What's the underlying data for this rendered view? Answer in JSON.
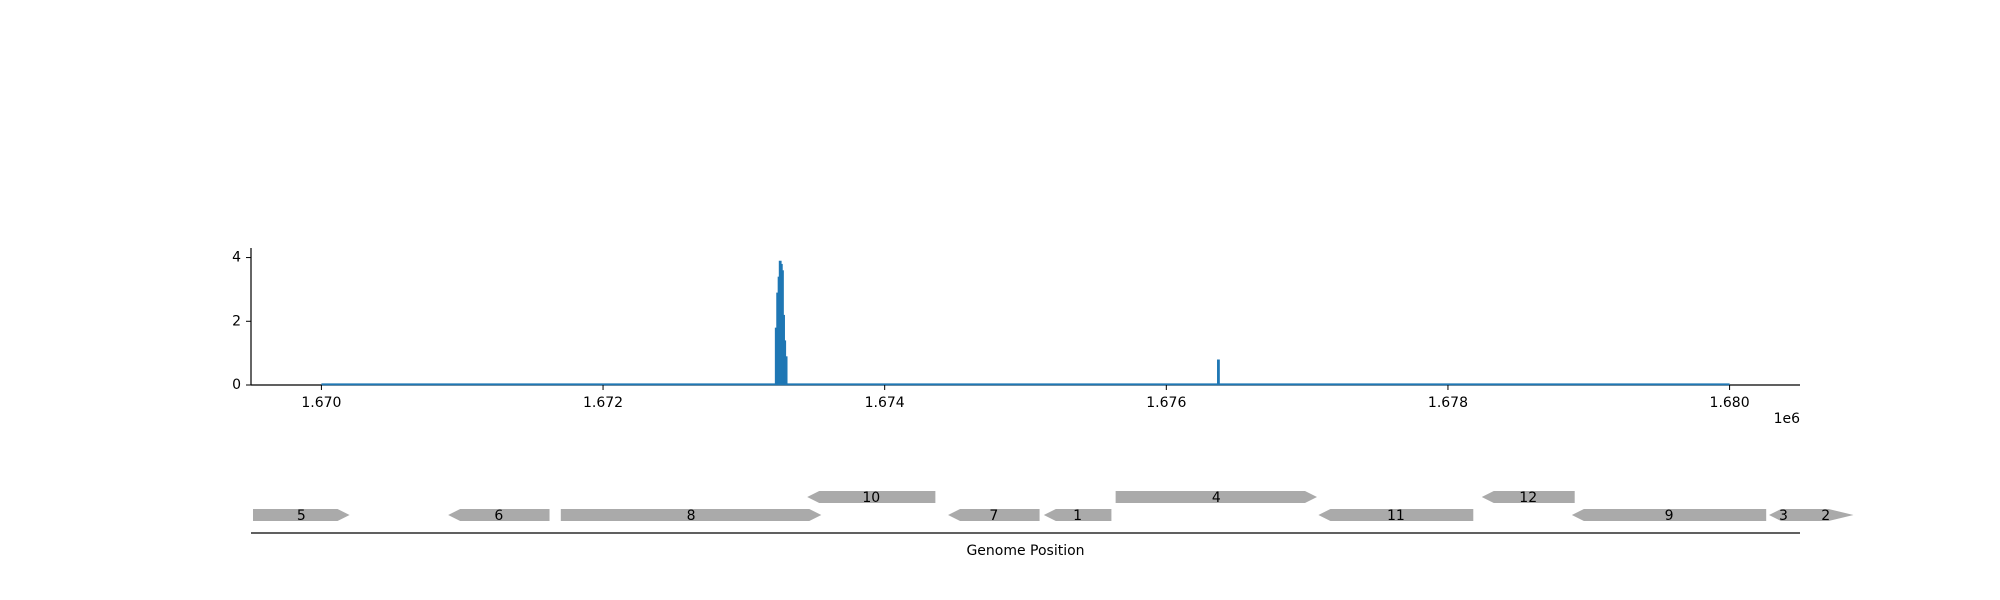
{
  "chart_data": [
    {
      "type": "bar",
      "title": "",
      "xlabel": "",
      "ylabel": "",
      "xlim": [
        1669500,
        1680500
      ],
      "ylim": [
        0,
        4.3
      ],
      "x_offset_text": "1e6",
      "xticks": [
        1670000,
        1672000,
        1674000,
        1676000,
        1678000,
        1680000
      ],
      "xtick_labels": [
        "1.670",
        "1.672",
        "1.674",
        "1.676",
        "1.678",
        "1.680"
      ],
      "yticks": [
        0,
        2,
        4
      ],
      "ytick_labels": [
        "0",
        "2",
        "4"
      ],
      "baseline": {
        "from": 1670000,
        "to": 1680000,
        "value": 0.02
      },
      "series": [
        {
          "color": "#1f77b4",
          "points": [
            {
              "x": 1673230,
              "y": 1.8
            },
            {
              "x": 1673240,
              "y": 2.9
            },
            {
              "x": 1673250,
              "y": 3.4
            },
            {
              "x": 1673258,
              "y": 3.9
            },
            {
              "x": 1673266,
              "y": 3.8
            },
            {
              "x": 1673274,
              "y": 3.6
            },
            {
              "x": 1673282,
              "y": 2.2
            },
            {
              "x": 1673290,
              "y": 1.4
            },
            {
              "x": 1673300,
              "y": 0.9
            },
            {
              "x": 1676370,
              "y": 0.8
            }
          ]
        }
      ]
    },
    {
      "type": "gene-track",
      "xlabel": "Genome Position",
      "color": "#aaaaaa",
      "genes": [
        {
          "label": "5",
          "start": 1669510,
          "end": 1670200,
          "strand": "+",
          "row": 0
        },
        {
          "label": "6",
          "start": 1670900,
          "end": 1671620,
          "strand": "-",
          "row": 0
        },
        {
          "label": "8",
          "start": 1671700,
          "end": 1673550,
          "strand": "+",
          "row": 0
        },
        {
          "label": "10",
          "start": 1673450,
          "end": 1674360,
          "strand": "-",
          "row": 1
        },
        {
          "label": "7",
          "start": 1674450,
          "end": 1675100,
          "strand": "-",
          "row": 0
        },
        {
          "label": "1",
          "start": 1675130,
          "end": 1675610,
          "strand": "-",
          "row": 0
        },
        {
          "label": "4",
          "start": 1675640,
          "end": 1677070,
          "strand": "+",
          "row": 1
        },
        {
          "label": "11",
          "start": 1677080,
          "end": 1678180,
          "strand": "-",
          "row": 0
        },
        {
          "label": "12",
          "start": 1678240,
          "end": 1678900,
          "strand": "-",
          "row": 1
        },
        {
          "label": "9",
          "start": 1678880,
          "end": 1680260,
          "strand": "-",
          "row": 0
        },
        {
          "label": "3",
          "start": 1680280,
          "end": 1680790,
          "strand": "-",
          "row": 0
        },
        {
          "label": "2",
          "start": 1680880,
          "end": 1681060,
          "strand": "-",
          "row": 0
        }
      ]
    }
  ]
}
